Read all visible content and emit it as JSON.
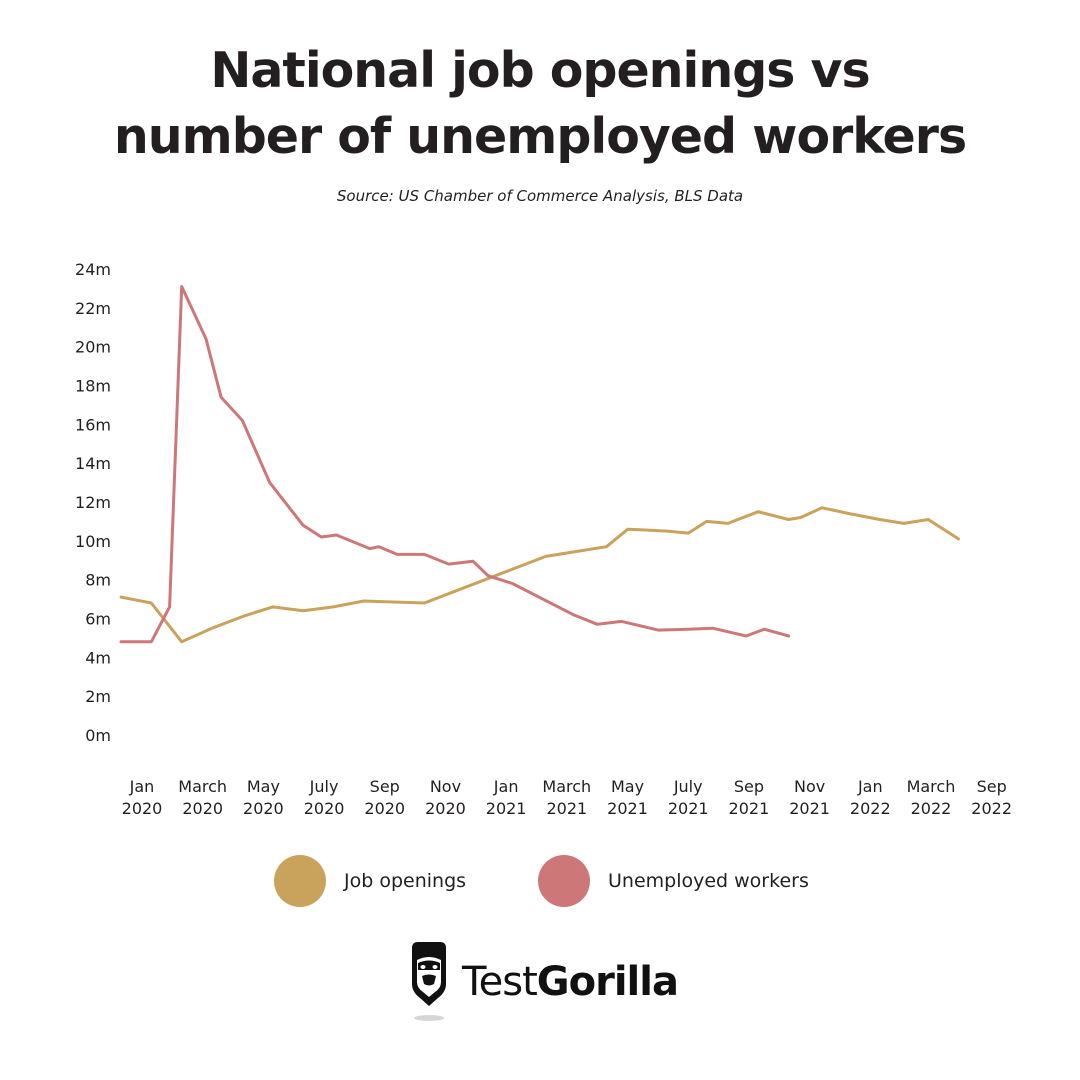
{
  "header": {
    "title_line1": "National job openings vs",
    "title_line2": "number of unemployed workers",
    "source": "Source: US Chamber of Commerce Analysis, BLS Data"
  },
  "chart_data": {
    "type": "line",
    "title": "National job openings vs number of unemployed workers",
    "subtitle": "Source: US Chamber of Commerce Analysis, BLS Data",
    "xlabel": "",
    "ylabel": "",
    "ylim": [
      0,
      24
    ],
    "y_ticks": [
      "0m",
      "2m",
      "4m",
      "6m",
      "8m",
      "10m",
      "12m",
      "14m",
      "16m",
      "18m",
      "20m",
      "22m",
      "24m"
    ],
    "x_ticks": [
      [
        "Jan",
        "2020"
      ],
      [
        "March",
        "2020"
      ],
      [
        "May",
        "2020"
      ],
      [
        "July",
        "2020"
      ],
      [
        "Sep",
        "2020"
      ],
      [
        "Nov",
        "2020"
      ],
      [
        "Jan",
        "2021"
      ],
      [
        "March",
        "2021"
      ],
      [
        "May",
        "2021"
      ],
      [
        "July",
        "2021"
      ],
      [
        "Sep",
        "2021"
      ],
      [
        "Nov",
        "2021"
      ],
      [
        "Jan",
        "2022"
      ],
      [
        "March",
        "2022"
      ],
      [
        "Sep",
        "2022"
      ]
    ],
    "x_tick_positions": [
      0,
      2,
      4,
      6,
      8,
      10,
      12,
      14,
      16,
      18,
      20,
      22,
      24,
      26,
      28
    ],
    "x_range": [
      0,
      29
    ],
    "grid": false,
    "legend_position": "bottom",
    "series": [
      {
        "name": "Job openings",
        "color": "#c9a25c",
        "points": [
          [
            0,
            7.1
          ],
          [
            1,
            6.8
          ],
          [
            2,
            4.8
          ],
          [
            3,
            5.5
          ],
          [
            4,
            6.1
          ],
          [
            5,
            6.6
          ],
          [
            6,
            6.4
          ],
          [
            7,
            6.6
          ],
          [
            8,
            6.9
          ],
          [
            9,
            6.85
          ],
          [
            10,
            6.8
          ],
          [
            11,
            7.4
          ],
          [
            12,
            8.0
          ],
          [
            13,
            8.6
          ],
          [
            14,
            9.2
          ],
          [
            15,
            9.45
          ],
          [
            16,
            9.7
          ],
          [
            16.7,
            10.6
          ],
          [
            18,
            10.5
          ],
          [
            18.7,
            10.4
          ],
          [
            19.3,
            11.0
          ],
          [
            20,
            10.9
          ],
          [
            21,
            11.5
          ],
          [
            22,
            11.1
          ],
          [
            22.4,
            11.2
          ],
          [
            23.1,
            11.7
          ],
          [
            24,
            11.4
          ],
          [
            25,
            11.1
          ],
          [
            25.8,
            10.9
          ],
          [
            26.6,
            11.1
          ],
          [
            27.6,
            10.1
          ]
        ]
      },
      {
        "name": "Unemployed workers",
        "color": "#cd7779",
        "points": [
          [
            0,
            4.8
          ],
          [
            1,
            4.8
          ],
          [
            1.6,
            6.6
          ],
          [
            2,
            23.1
          ],
          [
            2.8,
            20.4
          ],
          [
            3.3,
            17.4
          ],
          [
            4,
            16.2
          ],
          [
            4.9,
            13.0
          ],
          [
            6,
            10.8
          ],
          [
            6.6,
            10.2
          ],
          [
            7.1,
            10.3
          ],
          [
            8.2,
            9.6
          ],
          [
            8.5,
            9.7
          ],
          [
            9.1,
            9.3
          ],
          [
            10,
            9.3
          ],
          [
            10.8,
            8.8
          ],
          [
            11.6,
            8.95
          ],
          [
            12.1,
            8.2
          ],
          [
            12.9,
            7.8
          ],
          [
            13.9,
            7.0
          ],
          [
            14.9,
            6.2
          ],
          [
            15.7,
            5.7
          ],
          [
            16.5,
            5.85
          ],
          [
            17.7,
            5.4
          ],
          [
            18.7,
            5.45
          ],
          [
            19.5,
            5.5
          ],
          [
            20.6,
            5.1
          ],
          [
            21.2,
            5.45
          ],
          [
            22,
            5.1
          ]
        ]
      }
    ]
  },
  "legend": {
    "items": [
      {
        "label": "Job openings",
        "color": "#c9a25c"
      },
      {
        "label": "Unemployed workers",
        "color": "#cd7779"
      }
    ]
  },
  "brand": {
    "logo_icon": "gorilla-head-icon",
    "name_part1": "Test",
    "name_part2": "Gorilla"
  }
}
